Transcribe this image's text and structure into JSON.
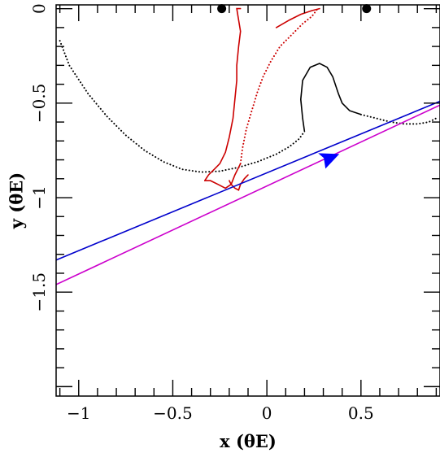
{
  "chart_data": {
    "type": "line",
    "xlabel": "x (θE)",
    "ylabel": "y (θE)",
    "xlim": [
      -1.12,
      0.92
    ],
    "ylim": [
      -2.05,
      0.02
    ],
    "grid": false,
    "x_ticks": [
      {
        "value": -1,
        "label": "−1"
      },
      {
        "value": -0.5,
        "label": "−0.5"
      },
      {
        "value": 0,
        "label": "0"
      },
      {
        "value": 0.5,
        "label": "0.5"
      }
    ],
    "y_ticks": [
      {
        "value": 0,
        "label": "0"
      },
      {
        "value": -0.5,
        "label": "−0.5"
      },
      {
        "value": -1,
        "label": "−1"
      },
      {
        "value": -1.5,
        "label": "−1.5"
      }
    ],
    "lenses": [
      {
        "x": -0.24,
        "y": 0.0
      },
      {
        "x": 0.53,
        "y": 0.0
      }
    ],
    "series": [
      {
        "style": "dotted",
        "color": "#000000",
        "x": [
          -1.1,
          -1.05,
          -0.95,
          -0.85,
          -0.75,
          -0.65,
          -0.55,
          -0.45,
          -0.35,
          -0.25,
          -0.15,
          -0.05,
          0.05,
          0.12,
          0.17,
          0.2
        ],
        "y": [
          -0.17,
          -0.3,
          -0.45,
          -0.57,
          -0.67,
          -0.75,
          -0.81,
          -0.85,
          -0.865,
          -0.86,
          -0.84,
          -0.81,
          -0.77,
          -0.73,
          -0.69,
          -0.65
        ]
      },
      {
        "style": "solid",
        "color": "#000000",
        "x": [
          0.2,
          0.19,
          0.18,
          0.19,
          0.23,
          0.28,
          0.32,
          0.35,
          0.38,
          0.4,
          0.44,
          0.5
        ],
        "y": [
          -0.65,
          -0.58,
          -0.48,
          -0.38,
          -0.31,
          -0.29,
          -0.31,
          -0.36,
          -0.45,
          -0.5,
          -0.54,
          -0.56
        ]
      },
      {
        "style": "dotted",
        "color": "#000000",
        "x": [
          0.5,
          0.58,
          0.66,
          0.73,
          0.8,
          0.86,
          0.9
        ],
        "y": [
          -0.56,
          -0.58,
          -0.6,
          -0.61,
          -0.61,
          -0.6,
          -0.58
        ]
      },
      {
        "style": "solid",
        "color": "#cc0000",
        "x": [
          -0.33,
          -0.31,
          -0.28,
          -0.25,
          -0.22,
          -0.2,
          -0.18,
          -0.17,
          -0.16,
          -0.16,
          -0.15,
          -0.14,
          -0.15,
          -0.16,
          -0.14
        ],
        "y": [
          -0.91,
          -0.88,
          -0.85,
          -0.82,
          -0.76,
          -0.68,
          -0.58,
          -0.48,
          -0.38,
          -0.3,
          -0.2,
          -0.12,
          -0.06,
          0.0,
          0.0
        ]
      },
      {
        "style": "dotted",
        "color": "#cc0000",
        "x": [
          -0.14,
          -0.13,
          -0.11,
          -0.08,
          -0.05,
          -0.02,
          0.02,
          0.07,
          0.13,
          0.19,
          0.24,
          0.27
        ],
        "y": [
          -0.82,
          -0.74,
          -0.64,
          -0.54,
          -0.44,
          -0.36,
          -0.28,
          -0.2,
          -0.14,
          -0.08,
          -0.04,
          0.0
        ]
      },
      {
        "style": "solid",
        "color": "#cc0000",
        "x": [
          -0.14,
          -0.17,
          -0.19,
          -0.22,
          -0.26,
          -0.3,
          -0.33
        ],
        "y": [
          -0.82,
          -0.88,
          -0.93,
          -0.95,
          -0.93,
          -0.91,
          -0.91
        ]
      },
      {
        "style": "solid",
        "color": "#cc0000",
        "x": [
          -0.2,
          -0.19,
          -0.17,
          -0.15,
          -0.14,
          -0.12,
          -0.1
        ],
        "y": [
          -0.91,
          -0.93,
          -0.95,
          -0.96,
          -0.93,
          -0.9,
          -0.88
        ]
      },
      {
        "style": "solid",
        "color": "#cc0000",
        "x": [
          0.05,
          0.12,
          0.18,
          0.24,
          0.28
        ],
        "y": [
          -0.1,
          -0.06,
          -0.03,
          -0.01,
          0.0
        ]
      },
      {
        "style": "solid",
        "color": "#0000cc",
        "x": [
          -1.12,
          0.92
        ],
        "y": [
          -1.33,
          -0.49
        ]
      },
      {
        "style": "solid",
        "color": "#cc00cc",
        "x": [
          -1.12,
          0.92
        ],
        "y": [
          -1.46,
          -0.51
        ]
      }
    ],
    "direction_arrow": {
      "x": 0.32,
      "y": -0.795,
      "color": "#0000ff"
    }
  }
}
